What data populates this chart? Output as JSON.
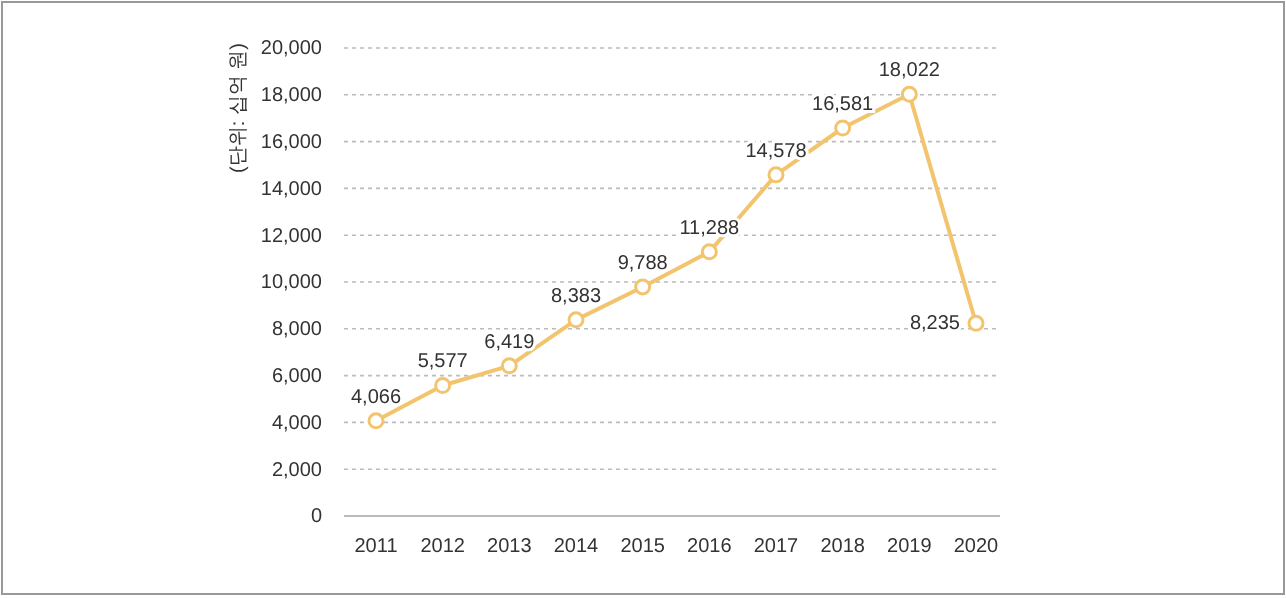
{
  "chart_data": {
    "type": "line",
    "ylabel": "(단위: 십억 원)",
    "categories": [
      "2011",
      "2012",
      "2013",
      "2014",
      "2015",
      "2016",
      "2017",
      "2018",
      "2019",
      "2020"
    ],
    "series": [
      {
        "color": "#f2c46d",
        "values": [
          4066,
          5577,
          6419,
          8383,
          9788,
          11288,
          14578,
          16581,
          18022,
          8235
        ],
        "value_labels": [
          "4,066",
          "5,577",
          "6,419",
          "8,383",
          "9,788",
          "11,288",
          "14,578",
          "16,581",
          "18,022",
          "8,235"
        ]
      }
    ],
    "ylim": [
      0,
      20000
    ],
    "yticks": [
      {
        "value": 0,
        "label": "0"
      },
      {
        "value": 2000,
        "label": "2,000"
      },
      {
        "value": 4000,
        "label": "4,000"
      },
      {
        "value": 6000,
        "label": "6,000"
      },
      {
        "value": 8000,
        "label": "8,000"
      },
      {
        "value": 10000,
        "label": "10,000"
      },
      {
        "value": 12000,
        "label": "12,000"
      },
      {
        "value": 14000,
        "label": "14,000"
      },
      {
        "value": 16000,
        "label": "16,000"
      },
      {
        "value": 18000,
        "label": "18,000"
      },
      {
        "value": 20000,
        "label": "20,000"
      }
    ],
    "grid": "y",
    "marker": "circle",
    "line_style": "solid"
  }
}
